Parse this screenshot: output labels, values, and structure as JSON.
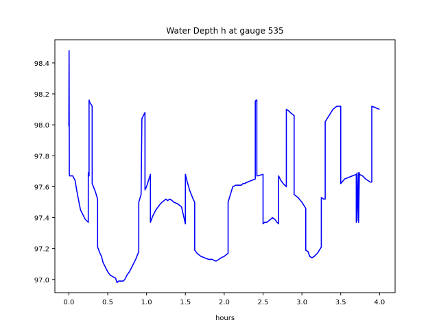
{
  "chart_data": {
    "type": "line",
    "title": "Water Depth h at gauge 535",
    "xlabel": "hours",
    "ylabel": "",
    "xlim": [
      -0.18,
      4.2
    ],
    "ylim": [
      96.915,
      98.55
    ],
    "xticks": [
      "0.0",
      "0.5",
      "1.0",
      "1.5",
      "2.0",
      "2.5",
      "3.0",
      "3.5",
      "4.0"
    ],
    "yticks": [
      "97.0",
      "97.2",
      "97.4",
      "97.6",
      "97.8",
      "98.0",
      "98.2",
      "98.4"
    ],
    "grid": false,
    "legend": "none",
    "color": "#0000ff",
    "series": [
      {
        "x": [
          0.0,
          0.003,
          0.006,
          0.008,
          0.01,
          0.05,
          0.08,
          0.1,
          0.13,
          0.15,
          0.18,
          0.21,
          0.25,
          0.2501,
          0.255,
          0.26,
          0.2601,
          0.265,
          0.3,
          0.3001,
          0.34,
          0.37,
          0.3701,
          0.4,
          0.42,
          0.44,
          0.47,
          0.5,
          0.53,
          0.56,
          0.6,
          0.62,
          0.64,
          0.67,
          0.7,
          0.72,
          0.75,
          0.78,
          0.82,
          0.86,
          0.9,
          0.9001,
          0.93,
          0.94,
          0.9401,
          0.97,
          0.98,
          0.9801,
          1.0,
          1.05,
          1.0501,
          1.08,
          1.1,
          1.12,
          1.15,
          1.18,
          1.2,
          1.25,
          1.27,
          1.3,
          1.33,
          1.35,
          1.4,
          1.45,
          1.5,
          1.5001,
          1.53,
          1.56,
          1.6,
          1.62,
          1.6201,
          1.65,
          1.7,
          1.75,
          1.8,
          1.85,
          1.88,
          1.9,
          1.93,
          1.96,
          2.0,
          2.05,
          2.0501,
          2.08,
          2.11,
          2.15,
          2.2,
          2.22,
          2.24,
          2.26,
          2.3,
          2.35,
          2.4,
          2.4001,
          2.41,
          2.42,
          2.4201,
          2.43,
          2.5,
          2.5001,
          2.52,
          2.55,
          2.6,
          2.62,
          2.65,
          2.68,
          2.7,
          2.7001,
          2.73,
          2.76,
          2.78,
          2.8,
          2.8001,
          2.83,
          2.85,
          2.9,
          2.9001,
          2.95,
          3.0,
          3.05,
          3.05001,
          3.08,
          3.1,
          3.13,
          3.16,
          3.2,
          3.25,
          3.2501,
          3.28,
          3.3,
          3.3001,
          3.35,
          3.4,
          3.45,
          3.5,
          3.5001,
          3.55,
          3.6,
          3.65,
          3.7,
          3.7001,
          3.71,
          3.7101,
          3.73,
          3.7301,
          3.74,
          3.7401,
          3.78,
          3.82,
          3.85,
          3.88,
          3.9,
          3.9001,
          3.95,
          4.0
        ],
        "y": [
          97.99,
          98.48,
          97.68,
          97.67,
          97.67,
          97.67,
          97.64,
          97.58,
          97.5,
          97.45,
          97.42,
          97.39,
          97.37,
          97.69,
          97.68,
          97.67,
          98.16,
          98.15,
          98.12,
          97.62,
          97.57,
          97.52,
          97.21,
          97.17,
          97.15,
          97.11,
          97.08,
          97.05,
          97.03,
          97.02,
          97.01,
          96.98,
          96.99,
          96.99,
          96.99,
          97.0,
          97.03,
          97.05,
          97.09,
          97.13,
          97.18,
          97.5,
          97.55,
          98.03,
          98.04,
          98.07,
          98.08,
          97.58,
          97.6,
          97.68,
          97.37,
          97.41,
          97.43,
          97.45,
          97.47,
          97.49,
          97.5,
          97.52,
          97.51,
          97.52,
          97.51,
          97.5,
          97.49,
          97.47,
          97.36,
          97.68,
          97.62,
          97.57,
          97.52,
          97.5,
          97.19,
          97.17,
          97.15,
          97.14,
          97.13,
          97.13,
          97.12,
          97.12,
          97.13,
          97.14,
          97.15,
          97.17,
          97.5,
          97.55,
          97.6,
          97.61,
          97.61,
          97.61,
          97.62,
          97.62,
          97.63,
          97.64,
          97.65,
          98.15,
          98.16,
          98.16,
          97.67,
          97.67,
          97.68,
          97.36,
          97.37,
          97.37,
          97.39,
          97.4,
          97.39,
          97.37,
          97.36,
          97.67,
          97.64,
          97.62,
          97.61,
          97.6,
          98.1,
          98.09,
          98.08,
          98.06,
          97.55,
          97.53,
          97.5,
          97.46,
          97.19,
          97.18,
          97.15,
          97.14,
          97.15,
          97.17,
          97.21,
          97.53,
          97.52,
          97.52,
          98.02,
          98.06,
          98.1,
          98.12,
          98.12,
          97.62,
          97.65,
          97.66,
          97.67,
          97.68,
          97.37,
          97.69,
          97.38,
          97.69,
          97.37,
          97.69,
          97.68,
          97.67,
          97.65,
          97.64,
          97.63,
          97.63,
          98.12,
          98.11,
          98.1
        ]
      }
    ]
  }
}
